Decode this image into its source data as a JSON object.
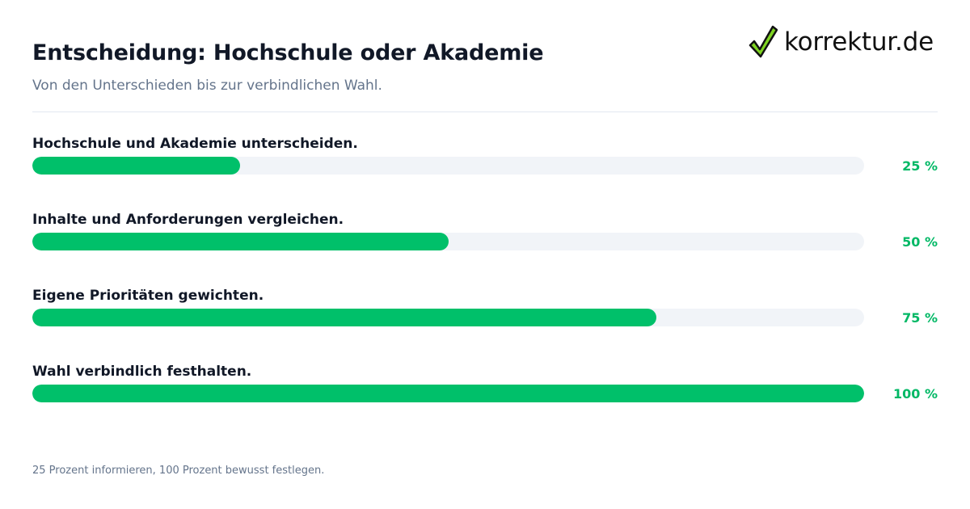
{
  "header": {
    "title": "Entscheidung: Hochschule oder Akademie",
    "subtitle": "Von den Unterschieden bis zur verbindlichen Wahl."
  },
  "logo": {
    "text": "korrektur.de",
    "icon": "checkmark-icon",
    "colors": {
      "check_fill": "#7ed321",
      "check_outline": "#111111"
    }
  },
  "colors": {
    "accent": "#00c06a",
    "track": "#f1f4f8",
    "percent_text": "#00b865"
  },
  "chart_data": {
    "type": "bar",
    "orientation": "horizontal",
    "categories": [
      "Hochschule und Akademie unterscheiden.",
      "Inhalte und Anforderungen vergleichen.",
      "Eigene Prioritäten gewichten.",
      "Wahl verbindlich festhalten."
    ],
    "values": [
      25,
      50,
      75,
      100
    ],
    "value_labels": [
      "25 %",
      "50 %",
      "75 %",
      "100 %"
    ],
    "xlim": [
      0,
      100
    ]
  },
  "footer": {
    "note": "25 Prozent informieren, 100 Prozent bewusst festlegen."
  }
}
